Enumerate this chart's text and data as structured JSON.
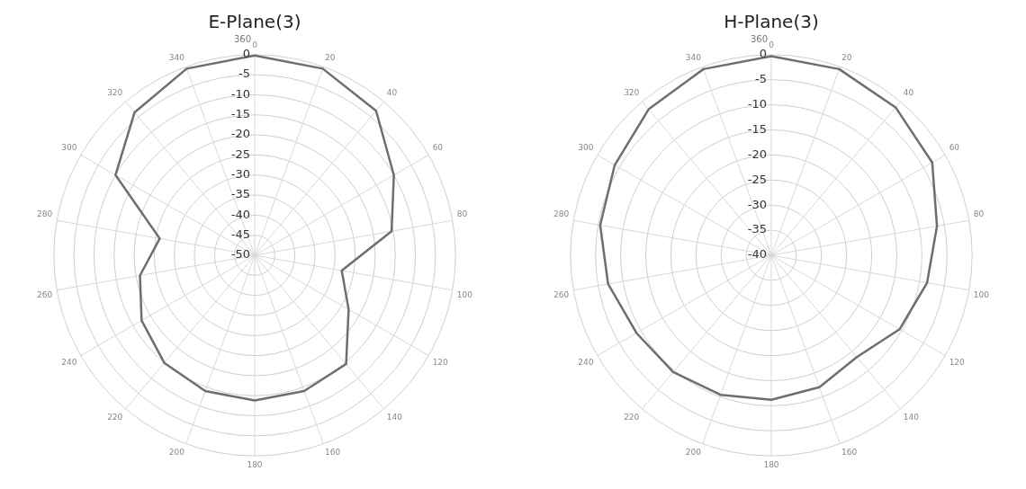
{
  "chart_data": [
    {
      "type": "radar",
      "title": "E-Plane(3)",
      "categories": [
        "0",
        "20",
        "40",
        "60",
        "80",
        "100",
        "120",
        "140",
        "160",
        "180",
        "200",
        "220",
        "240",
        "260",
        "280",
        "300",
        "320",
        "340"
      ],
      "annotations": [
        "360"
      ],
      "series": [
        {
          "color": "#6e6e6e",
          "values": [
            -0.2,
            -0.5,
            -3,
            -10,
            -15.4,
            -28,
            -23,
            -14.6,
            -14,
            -13.8,
            -14,
            -15,
            -17.5,
            -21,
            -26,
            -10,
            -3.5,
            -0.5
          ]
        }
      ],
      "ylim": [
        -50,
        0
      ],
      "yticks": [
        -50,
        -45,
        -40,
        -35,
        -30,
        -25,
        -20,
        -15,
        -10,
        -5,
        0
      ],
      "grid": true,
      "marker": "none"
    },
    {
      "type": "radar",
      "title": "H-Plane(3)",
      "categories": [
        "0",
        "20",
        "40",
        "60",
        "80",
        "100",
        "120",
        "140",
        "160",
        "180",
        "200",
        "220",
        "240",
        "260",
        "280",
        "300",
        "320",
        "340"
      ],
      "annotations": [
        "360"
      ],
      "series": [
        {
          "color": "#6e6e6e",
          "values": [
            -0.3,
            -0.5,
            -1.5,
            -3,
            -6.5,
            -8.5,
            -10.5,
            -13.5,
            -12,
            -11.2,
            -10.4,
            -9.6,
            -9,
            -7,
            -5.4,
            -4,
            -2,
            -0.5
          ]
        }
      ],
      "ylim": [
        -40,
        0
      ],
      "yticks": [
        -40,
        -35,
        -30,
        -25,
        -20,
        -15,
        -10,
        -5,
        0
      ],
      "grid": true,
      "marker": "none"
    }
  ]
}
